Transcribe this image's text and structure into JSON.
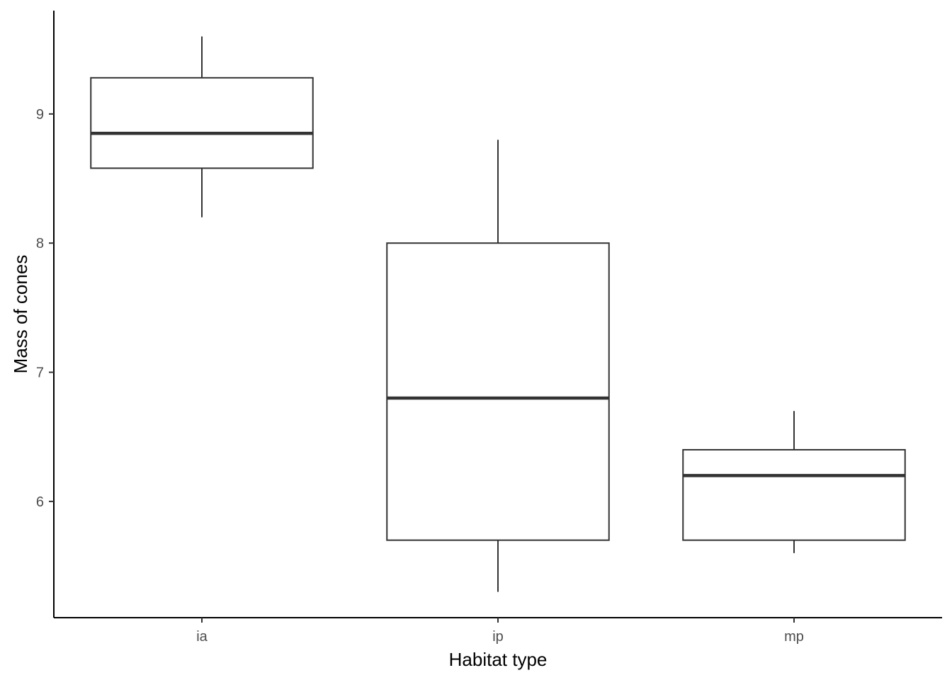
{
  "chart_data": {
    "type": "boxplot",
    "title": "",
    "xlabel": "Habitat type",
    "ylabel": "Mass of cones",
    "categories": [
      "ia",
      "ip",
      "mp"
    ],
    "boxes": [
      {
        "category": "ia",
        "min": 8.2,
        "q1": 8.58,
        "median": 8.85,
        "q3": 9.28,
        "max": 9.6
      },
      {
        "category": "ip",
        "min": 5.3,
        "q1": 5.7,
        "median": 6.8,
        "q3": 8.0,
        "max": 8.8
      },
      {
        "category": "mp",
        "min": 5.6,
        "q1": 5.7,
        "median": 6.2,
        "q3": 6.4,
        "max": 6.7
      }
    ],
    "yticks": [
      "6",
      "7",
      "8",
      "9"
    ],
    "ylim": [
      5.1,
      9.8
    ],
    "grid": false,
    "legend": "none",
    "colors": {
      "box_outline": "#333333",
      "box_fill": "#ffffff",
      "axis": "#000000",
      "tick_text": "#4d4d4d"
    }
  }
}
